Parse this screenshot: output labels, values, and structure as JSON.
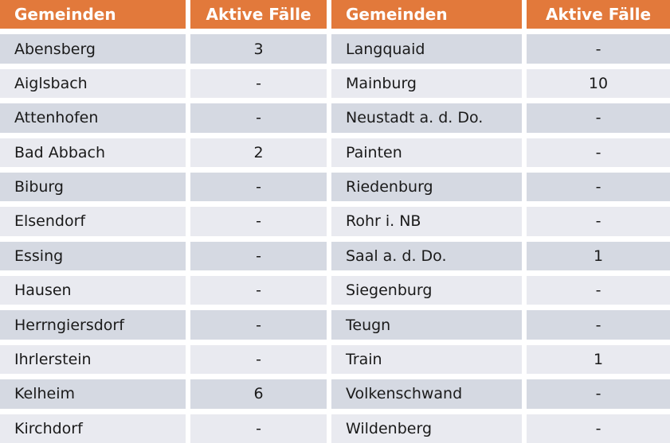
{
  "colors": {
    "header_bg": "#e2793b",
    "header_text": "#ffffff",
    "row_odd_bg": "#d5d9e2",
    "row_even_bg": "#e9eaf0",
    "body_text": "#1a1a1a",
    "gap": "#ffffff"
  },
  "table": {
    "left": {
      "headers": [
        "Gemeinden",
        "Aktive Fälle"
      ],
      "rows": [
        {
          "gemeinde": "Abensberg",
          "faelle": "3"
        },
        {
          "gemeinde": "Aiglsbach",
          "faelle": "-"
        },
        {
          "gemeinde": "Attenhofen",
          "faelle": "-"
        },
        {
          "gemeinde": "Bad Abbach",
          "faelle": "2"
        },
        {
          "gemeinde": "Biburg",
          "faelle": "-"
        },
        {
          "gemeinde": "Elsendorf",
          "faelle": "-"
        },
        {
          "gemeinde": "Essing",
          "faelle": "-"
        },
        {
          "gemeinde": "Hausen",
          "faelle": "-"
        },
        {
          "gemeinde": "Herrngiersdorf",
          "faelle": "-"
        },
        {
          "gemeinde": "Ihrlerstein",
          "faelle": "-"
        },
        {
          "gemeinde": "Kelheim",
          "faelle": "6"
        },
        {
          "gemeinde": "Kirchdorf",
          "faelle": "-"
        }
      ]
    },
    "right": {
      "headers": [
        "Gemeinden",
        "Aktive Fälle"
      ],
      "rows": [
        {
          "gemeinde": "Langquaid",
          "faelle": "-"
        },
        {
          "gemeinde": "Mainburg",
          "faelle": "10"
        },
        {
          "gemeinde": "Neustadt a. d. Do.",
          "faelle": "-"
        },
        {
          "gemeinde": "Painten",
          "faelle": "-"
        },
        {
          "gemeinde": "Riedenburg",
          "faelle": "-"
        },
        {
          "gemeinde": "Rohr i. NB",
          "faelle": "-"
        },
        {
          "gemeinde": "Saal a. d. Do.",
          "faelle": "1"
        },
        {
          "gemeinde": "Siegenburg",
          "faelle": "-"
        },
        {
          "gemeinde": "Teugn",
          "faelle": "-"
        },
        {
          "gemeinde": "Train",
          "faelle": "1"
        },
        {
          "gemeinde": "Volkenschwand",
          "faelle": "-"
        },
        {
          "gemeinde": "Wildenberg",
          "faelle": "-"
        }
      ]
    }
  },
  "chart_data": {
    "type": "table",
    "columns": [
      "Gemeinden",
      "Aktive Fälle",
      "Gemeinden",
      "Aktive Fälle"
    ],
    "rows": [
      [
        "Abensberg",
        "3",
        "Langquaid",
        "-"
      ],
      [
        "Aiglsbach",
        "-",
        "Mainburg",
        "10"
      ],
      [
        "Attenhofen",
        "-",
        "Neustadt a. d. Do.",
        "-"
      ],
      [
        "Bad Abbach",
        "2",
        "Painten",
        "-"
      ],
      [
        "Biburg",
        "-",
        "Riedenburg",
        "-"
      ],
      [
        "Elsendorf",
        "-",
        "Rohr i. NB",
        "-"
      ],
      [
        "Essing",
        "-",
        "Saal a. d. Do.",
        "1"
      ],
      [
        "Hausen",
        "-",
        "Siegenburg",
        "-"
      ],
      [
        "Herrngiersdorf",
        "-",
        "Teugn",
        "-"
      ],
      [
        "Ihrlerstein",
        "-",
        "Train",
        "1"
      ],
      [
        "Kelheim",
        "6",
        "Volkenschwand",
        "-"
      ],
      [
        "Kirchdorf",
        "-",
        "Wildenberg",
        "-"
      ]
    ]
  }
}
